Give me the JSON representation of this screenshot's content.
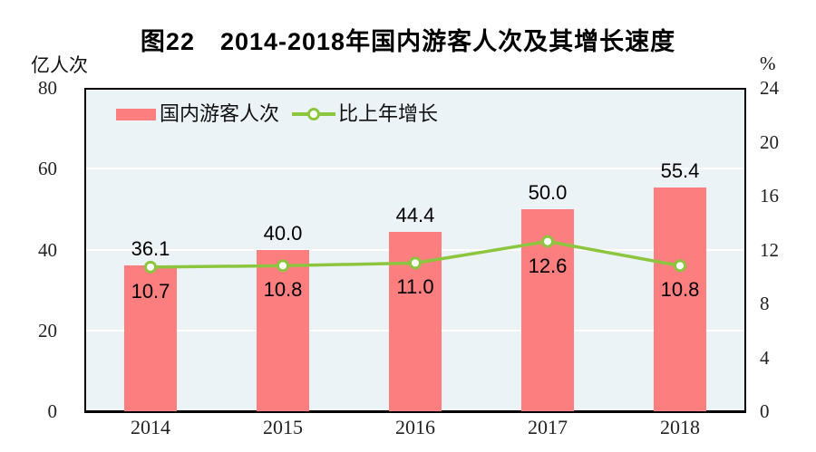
{
  "title": "图22　2014-2018年国内游客人次及其增长速度",
  "chart_data": {
    "type": "bar",
    "combo": "bar+line",
    "title": "图22　2014-2018年国内游客人次及其增长速度",
    "categories": [
      "2014",
      "2015",
      "2016",
      "2017",
      "2018"
    ],
    "series": [
      {
        "name": "国内游客人次",
        "type": "bar",
        "axis": "left",
        "values": [
          36.1,
          40.0,
          44.4,
          50.0,
          55.4
        ],
        "color": "#FC7E7E"
      },
      {
        "name": "比上年增长",
        "type": "line",
        "axis": "right",
        "values": [
          10.7,
          10.8,
          11.0,
          12.6,
          10.8
        ],
        "color": "#8CC63E",
        "marker": "circle-open"
      }
    ],
    "left_axis": {
      "unit": "亿人次",
      "min": 0,
      "max": 80,
      "ticks": [
        80,
        60,
        40,
        20,
        0
      ]
    },
    "right_axis": {
      "unit": "%",
      "min": 0,
      "max": 24,
      "ticks": [
        24,
        20,
        16,
        12,
        8,
        4,
        0
      ]
    },
    "gridlines_left_values": [
      60,
      40,
      20
    ],
    "legend_position": "top-left-inside",
    "colors": {
      "plot_bg": "#ECF3F7",
      "grid": "#FFFFFF",
      "axis_frame": "#000000",
      "label_text": "#000000",
      "tick_text": "#222222"
    }
  }
}
